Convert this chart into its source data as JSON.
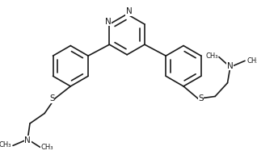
{
  "background_color": "#ffffff",
  "line_color": "#1a1a1a",
  "line_width": 1.2,
  "font_size": 7.5,
  "figsize": [
    3.18,
    1.97
  ],
  "dpi": 100,
  "xlim": [
    -0.5,
    10.5
  ],
  "ylim": [
    -0.5,
    6.5
  ]
}
